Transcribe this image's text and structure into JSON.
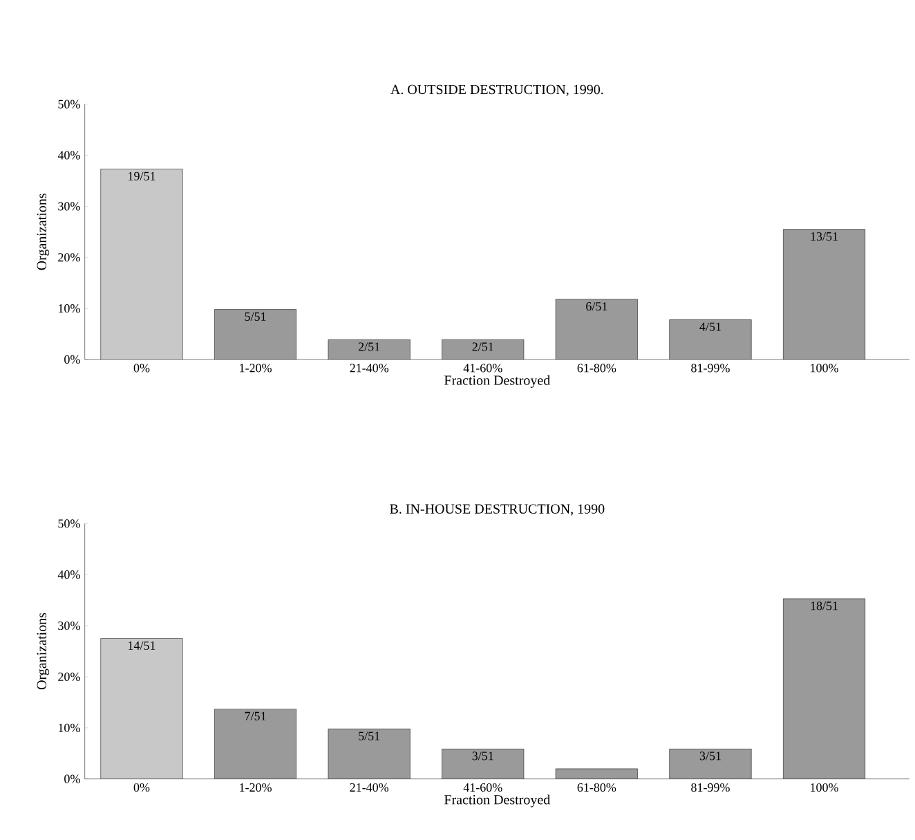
{
  "chart_data": [
    {
      "type": "bar",
      "title": "A.  OUTSIDE DESTRUCTION, 1990.",
      "xlabel": "Fraction Destroyed",
      "ylabel": "Organizations",
      "categories": [
        "0%",
        "1-20%",
        "21-40%",
        "41-60%",
        "61-80%",
        "81-99%",
        "100%"
      ],
      "values": [
        37.3,
        9.8,
        3.9,
        3.9,
        11.8,
        7.8,
        25.5
      ],
      "value_labels": [
        "19/51",
        "5/51",
        "2/51",
        "2/51",
        "6/51",
        "4/51",
        "13/51"
      ],
      "colors": [
        "#c8c8c8",
        "#9a9a9a",
        "#9a9a9a",
        "#9a9a9a",
        "#9a9a9a",
        "#9a9a9a",
        "#9a9a9a"
      ],
      "ylim": [
        0,
        50
      ],
      "yticks": [
        {
          "value": 0,
          "label": "0%"
        },
        {
          "value": 10,
          "label": "10%"
        },
        {
          "value": 20,
          "label": "20%"
        },
        {
          "value": 30,
          "label": "30%"
        },
        {
          "value": 40,
          "label": "40%"
        },
        {
          "value": 50,
          "label": "50%"
        }
      ],
      "grid": false
    },
    {
      "type": "bar",
      "title": "B.  IN-HOUSE DESTRUCTION, 1990",
      "xlabel": "Fraction Destroyed",
      "ylabel": "Organizations",
      "categories": [
        "0%",
        "1-20%",
        "21-40%",
        "41-60%",
        "61-80%",
        "81-99%",
        "100%"
      ],
      "values": [
        27.5,
        13.7,
        9.8,
        5.9,
        2.0,
        5.9,
        35.3
      ],
      "value_labels": [
        "14/51",
        "7/51",
        "5/51",
        "3/51",
        null,
        "3/51",
        "18/51"
      ],
      "colors": [
        "#c8c8c8",
        "#9a9a9a",
        "#9a9a9a",
        "#9a9a9a",
        "#9a9a9a",
        "#9a9a9a",
        "#9a9a9a"
      ],
      "ylim": [
        0,
        50
      ],
      "yticks": [
        {
          "value": 0,
          "label": "0%"
        },
        {
          "value": 10,
          "label": "10%"
        },
        {
          "value": 20,
          "label": "20%"
        },
        {
          "value": 30,
          "label": "30%"
        },
        {
          "value": 40,
          "label": "40%"
        },
        {
          "value": 50,
          "label": "50%"
        }
      ],
      "grid": false
    }
  ]
}
